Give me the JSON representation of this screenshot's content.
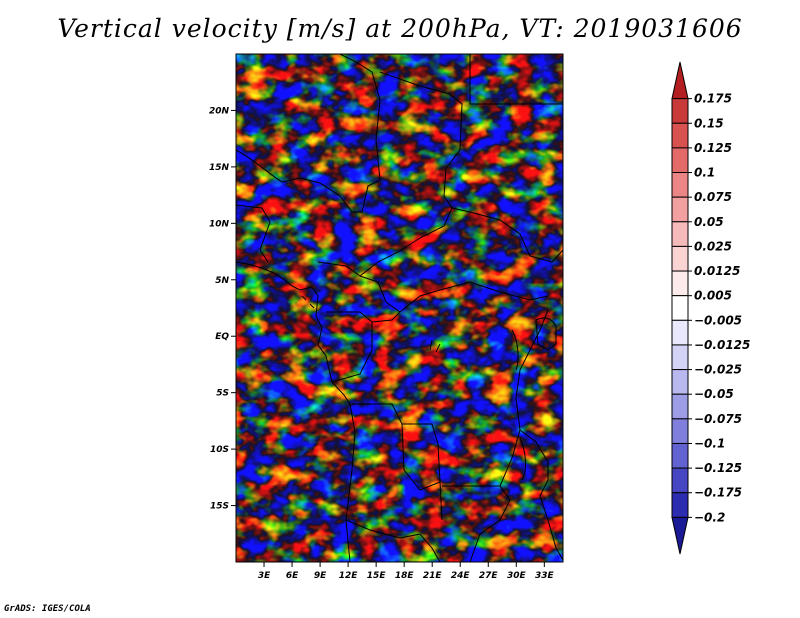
{
  "chart_data": {
    "type": "heatmap",
    "title": "Vertical velocity [m/s] at 200hPa, VT: 2019031606",
    "variable": "Vertical velocity",
    "units": "m/s",
    "pressure_level": "200hPa",
    "valid_time": "2019031606",
    "xlabel": "",
    "ylabel": "",
    "x_range": [
      0,
      35
    ],
    "y_range": [
      -20,
      25
    ],
    "x_ticks": [
      3,
      6,
      9,
      12,
      15,
      18,
      21,
      24,
      27,
      30,
      33
    ],
    "x_tick_labels": [
      "3E",
      "6E",
      "9E",
      "12E",
      "15E",
      "18E",
      "21E",
      "24E",
      "27E",
      "30E",
      "33E"
    ],
    "y_ticks": [
      20,
      15,
      10,
      5,
      0,
      -5,
      -10,
      -15
    ],
    "y_tick_labels": [
      "20N",
      "15N",
      "10N",
      "5N",
      "EQ",
      "5S",
      "10S",
      "15S"
    ],
    "colorbar": {
      "levels": [
        "0.175",
        "0.15",
        "0.125",
        "0.1",
        "0.075",
        "0.05",
        "0.025",
        "0.0125",
        "0.005",
        "−0.005",
        "−0.0125",
        "−0.025",
        "−0.05",
        "−0.075",
        "−0.1",
        "−0.125",
        "−0.175",
        "−0.2"
      ],
      "colors": [
        "#b31e20",
        "#c83a3a",
        "#d95252",
        "#e46a6a",
        "#ec8585",
        "#f2a0a0",
        "#f7baba",
        "#fad3d3",
        "#fdeaea",
        "#ffffff",
        "#e9e9fb",
        "#d3d3f5",
        "#b9b9f0",
        "#9d9de6",
        "#8080dc",
        "#6262d0",
        "#4646c2",
        "#2c2cb0",
        "#1a1a96"
      ]
    }
  },
  "credit": "GrADS: IGES/COLA"
}
